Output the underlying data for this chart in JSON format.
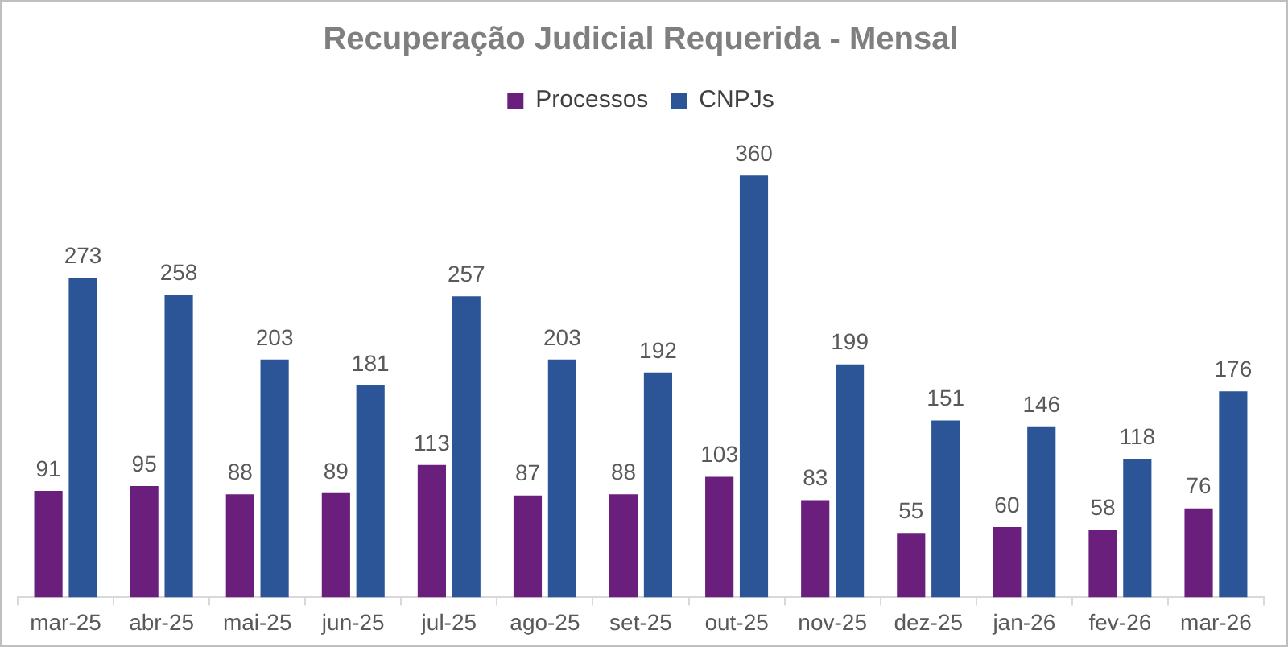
{
  "chart_data": {
    "type": "bar",
    "title": "Recuperação Judicial Requerida - Mensal",
    "categories": [
      "mar-25",
      "abr-25",
      "mai-25",
      "jun-25",
      "jul-25",
      "ago-25",
      "set-25",
      "out-25",
      "nov-25",
      "dez-25",
      "jan-26",
      "fev-26",
      "mar-26"
    ],
    "series": [
      {
        "name": "Processos",
        "color": "#6b1f7c",
        "values": [
          91,
          95,
          88,
          89,
          113,
          87,
          88,
          103,
          83,
          55,
          60,
          58,
          76
        ]
      },
      {
        "name": "CNPJs",
        "color": "#2b5597",
        "values": [
          273,
          258,
          203,
          181,
          257,
          203,
          192,
          360,
          199,
          151,
          146,
          118,
          176
        ]
      }
    ],
    "data_labels": true,
    "legend": "top",
    "grid": false
  }
}
